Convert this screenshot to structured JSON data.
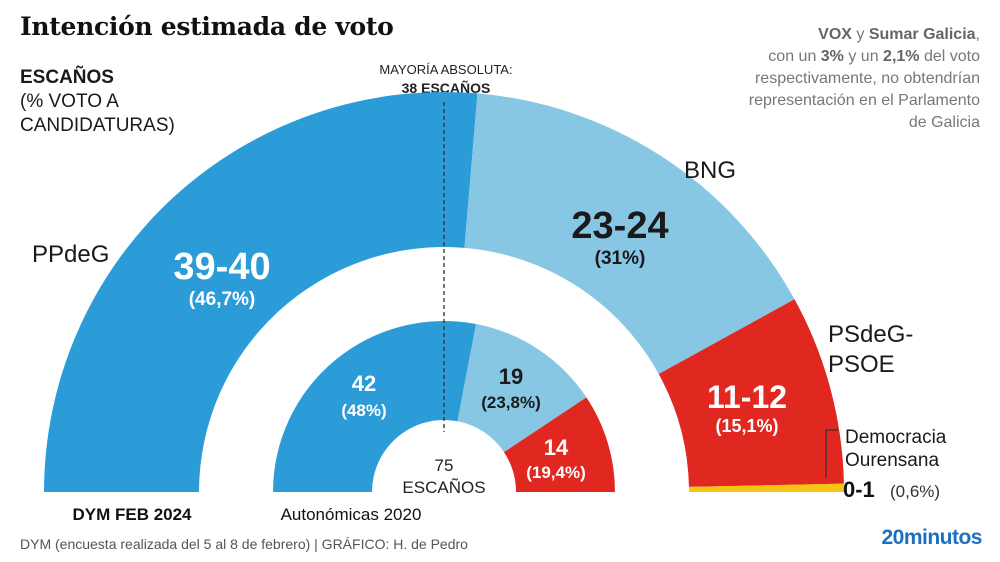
{
  "title": "Intención estimada de voto",
  "legend": {
    "head": "ESCAÑOS",
    "sub1": "(% VOTO A",
    "sub2": "CANDIDATURAS)"
  },
  "majority": {
    "line1": "MAYORÍA ABSOLUTA:",
    "line2": "38 ESCAÑOS"
  },
  "note": {
    "p1": "VOX",
    "p2": " y ",
    "p3": "Sumar Galicia",
    "p4": ",",
    "p5": "con un ",
    "p6": "3%",
    "p7": " y un ",
    "p8": "2,1%",
    "p9": " del voto",
    "p10": "respectivamente, no obtendrían",
    "p11": "representación en el Parlamento",
    "p12": "de Galicia"
  },
  "footer": "DYM (encuesta realizada del 5 al 8 de febrero)   |  GRÁFICO: H. de Pedro",
  "logo": "20minutos",
  "colors": {
    "pp": "#2c9cd8",
    "bng": "#87c7e4",
    "psoe": "#e02720",
    "do": "#f8c515"
  },
  "chart_data": {
    "type": "parliament-semicircle",
    "total_seats": 75,
    "total_label_line1": "75",
    "total_label_line2": "ESCAÑOS",
    "majority_seats": 38,
    "rings": [
      {
        "name": "DYM FEB 2024",
        "series": [
          {
            "party": "PPdeG",
            "label": "PPdeG",
            "seats": 39.5,
            "seats_label": "39-40",
            "vote_label": "(46,7%)",
            "color": "#2c9cd8"
          },
          {
            "party": "BNG",
            "label": "BNG",
            "seats": 23.5,
            "seats_label": "23-24",
            "vote_label": "(31%)",
            "color": "#87c7e4"
          },
          {
            "party": "PSdeG-PSOE",
            "label_line1": "PSdeG-",
            "label_line2": "PSOE",
            "seats": 11.5,
            "seats_label": "11-12",
            "vote_label": "(15,1%)",
            "color": "#e02720"
          },
          {
            "party": "Democracia Ourensana",
            "label_line1": "Democracia",
            "label_line2": "Ourensana",
            "seats": 0.5,
            "seats_label": "0-1",
            "vote_label": "(0,6%)",
            "color": "#f8c515"
          }
        ]
      },
      {
        "name": "Autonómicas 2020",
        "series": [
          {
            "party": "PPdeG",
            "seats": 42,
            "seats_label": "42",
            "vote_label": "(48%)",
            "color": "#2c9cd8"
          },
          {
            "party": "BNG",
            "seats": 19,
            "seats_label": "19",
            "vote_label": "(23,8%)",
            "color": "#87c7e4"
          },
          {
            "party": "PSdeG-PSOE",
            "seats": 14,
            "seats_label": "14",
            "vote_label": "(19,4%)",
            "color": "#e02720"
          }
        ]
      }
    ]
  }
}
